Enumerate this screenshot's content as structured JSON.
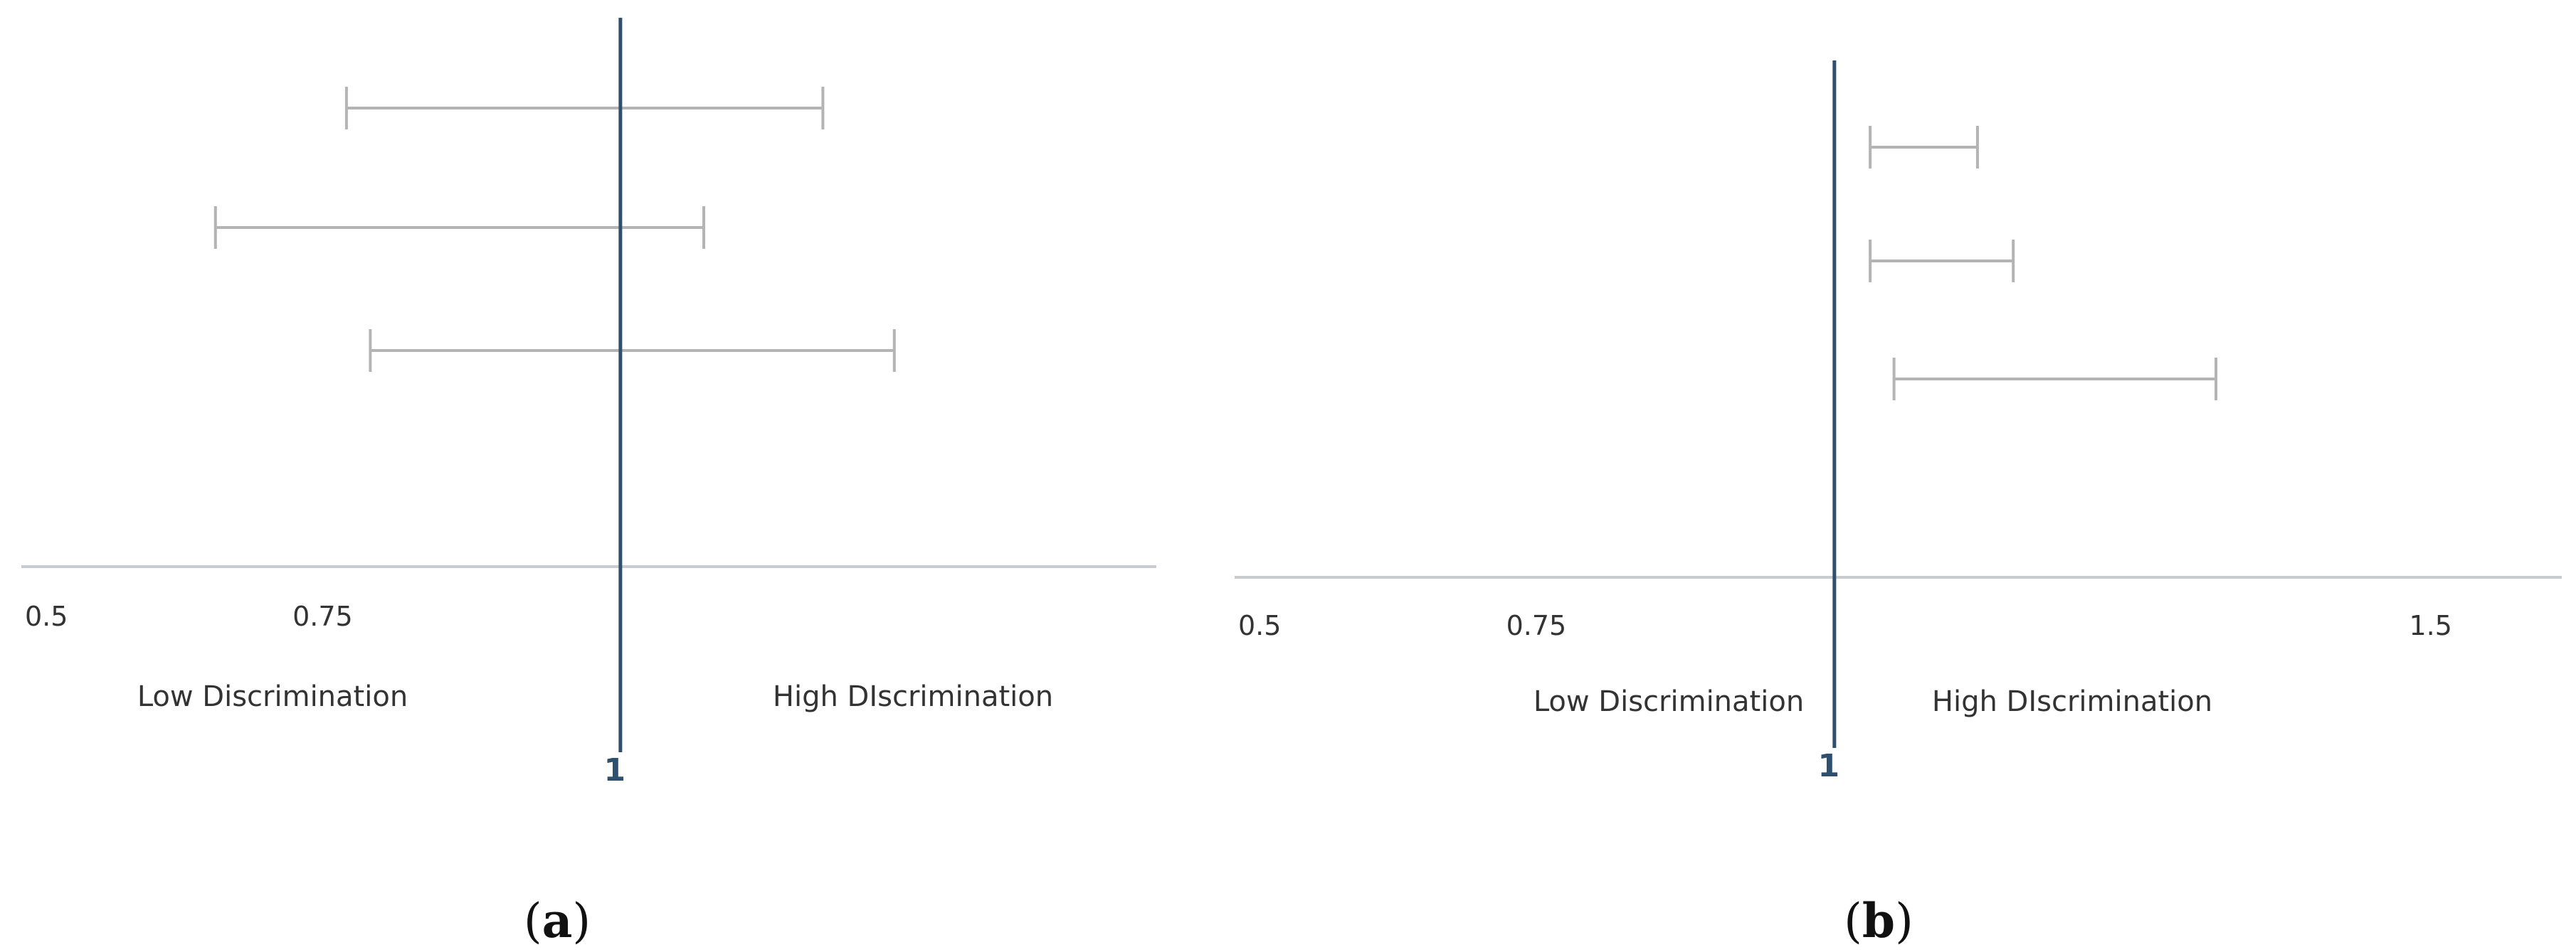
{
  "colors": {
    "interval": "#b4b4b4",
    "axis": "#c8ccd0",
    "reference": "#2f4f6f"
  },
  "chart_data": [
    {
      "type": "forest",
      "caption": "a",
      "xlim": [
        0.5,
        1.45
      ],
      "ticks": [
        {
          "value": 0.5,
          "label": "0.5"
        },
        {
          "value": 0.75,
          "label": "0.75"
        }
      ],
      "reference": {
        "value": 1,
        "label": "1"
      },
      "left_label": "Low Discrimination",
      "right_label": "High DIscrimination",
      "grid": false,
      "intervals": [
        {
          "lower": 0.77,
          "upper": 1.17
        },
        {
          "lower": 0.66,
          "upper": 1.07
        },
        {
          "lower": 0.79,
          "upper": 1.23
        }
      ]
    },
    {
      "type": "forest",
      "caption": "b",
      "xlim": [
        0.5,
        1.61
      ],
      "ticks": [
        {
          "value": 0.5,
          "label": "0.5"
        },
        {
          "value": 0.75,
          "label": "0.75"
        },
        {
          "value": 1.5,
          "label": "1.5"
        }
      ],
      "reference": {
        "value": 1,
        "label": "1"
      },
      "left_label": "Low Discrimination",
      "right_label": "High DIscrimination",
      "grid": false,
      "intervals": [
        {
          "lower": 1.03,
          "upper": 1.12
        },
        {
          "lower": 1.03,
          "upper": 1.15
        },
        {
          "lower": 1.05,
          "upper": 1.32
        }
      ]
    }
  ]
}
